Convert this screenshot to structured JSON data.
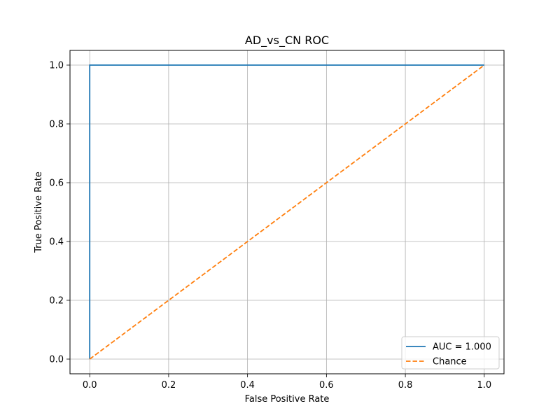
{
  "chart_data": {
    "type": "line",
    "title": "AD_vs_CN ROC",
    "xlabel": "False Positive Rate",
    "ylabel": "True Positive Rate",
    "xlim": [
      -0.05,
      1.05
    ],
    "ylim": [
      -0.05,
      1.05
    ],
    "x_ticks": [
      "0.0",
      "0.2",
      "0.4",
      "0.6",
      "0.8",
      "1.0"
    ],
    "y_ticks": [
      "0.0",
      "0.2",
      "0.4",
      "0.6",
      "0.8",
      "1.0"
    ],
    "grid": true,
    "legend_position": "bottom-right",
    "series": [
      {
        "name": "AUC = 1.000",
        "color": "#1f77b4",
        "line_style": "solid",
        "x": [
          0.0,
          0.0,
          1.0
        ],
        "y": [
          0.0,
          1.0,
          1.0
        ]
      },
      {
        "name": "Chance",
        "color": "#ff7f0e",
        "line_style": "dashed",
        "x": [
          0.0,
          1.0
        ],
        "y": [
          0.0,
          1.0
        ]
      }
    ]
  }
}
